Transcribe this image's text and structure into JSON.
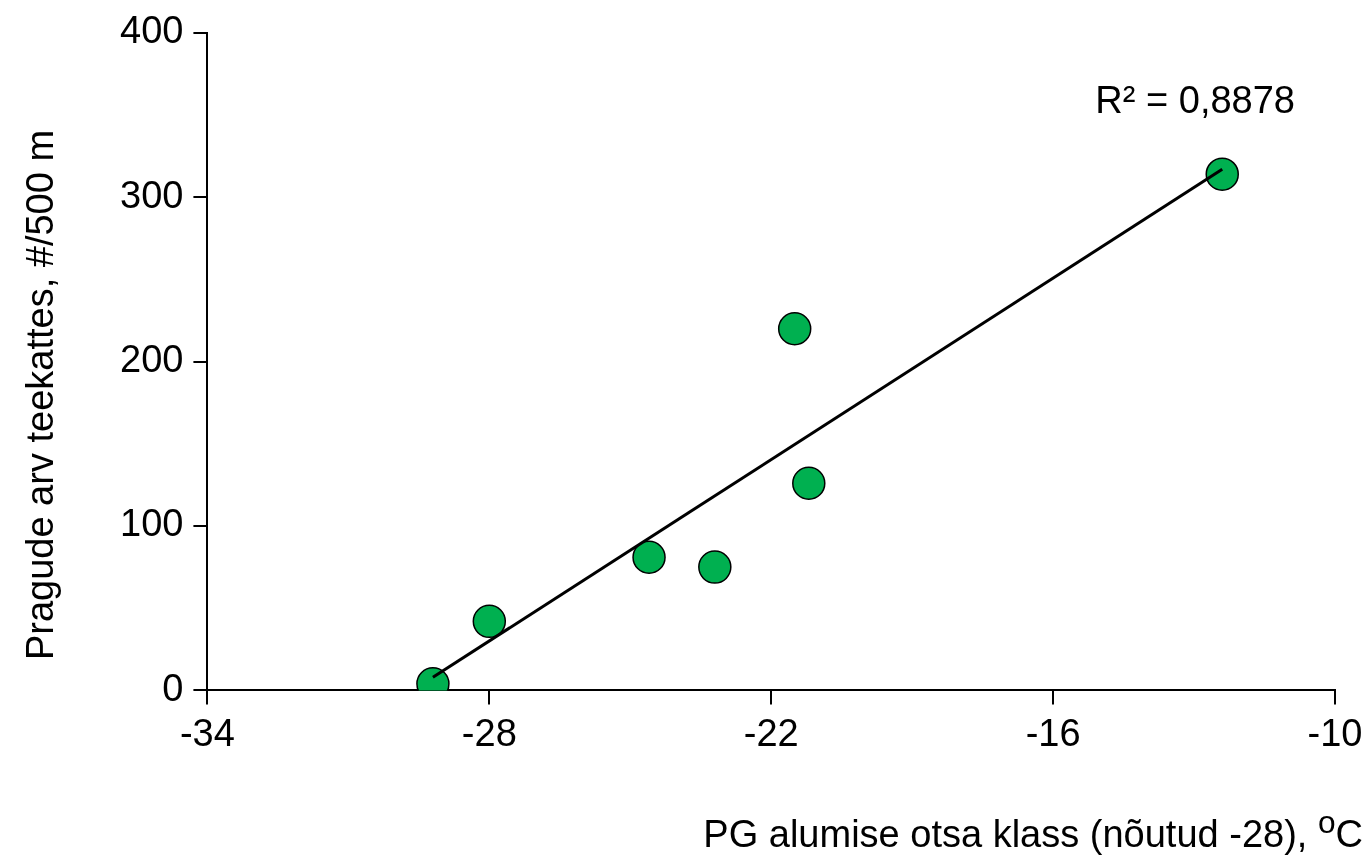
{
  "chart_data": {
    "type": "scatter",
    "xlabel": "PG alumise otsa klass (nõutud -28), $^{o}$C",
    "ylabel": "Pragude arv teekattes, #/500 m",
    "series": [
      {
        "marker": "circle",
        "color": "#00b050",
        "x": [
          -29.2,
          -28,
          -24.6,
          -23.2,
          -21.5,
          -21.2,
          -12.4
        ],
        "values": [
          4,
          42,
          81,
          75,
          220,
          126,
          314
        ]
      },
      {
        "type": "line",
        "color": "#000000",
        "x": [
          -29.2,
          -12.4
        ],
        "values": [
          8,
          317
        ]
      }
    ],
    "annotations": [
      "R² = 0,8878"
    ],
    "xlim": [
      -34,
      -10
    ],
    "xticks": [
      -34,
      -28,
      -22,
      -16,
      -10
    ],
    "ylim": [
      0,
      400
    ],
    "yticks": [
      0,
      100,
      200,
      300,
      400
    ],
    "grid": false,
    "legend": false
  }
}
